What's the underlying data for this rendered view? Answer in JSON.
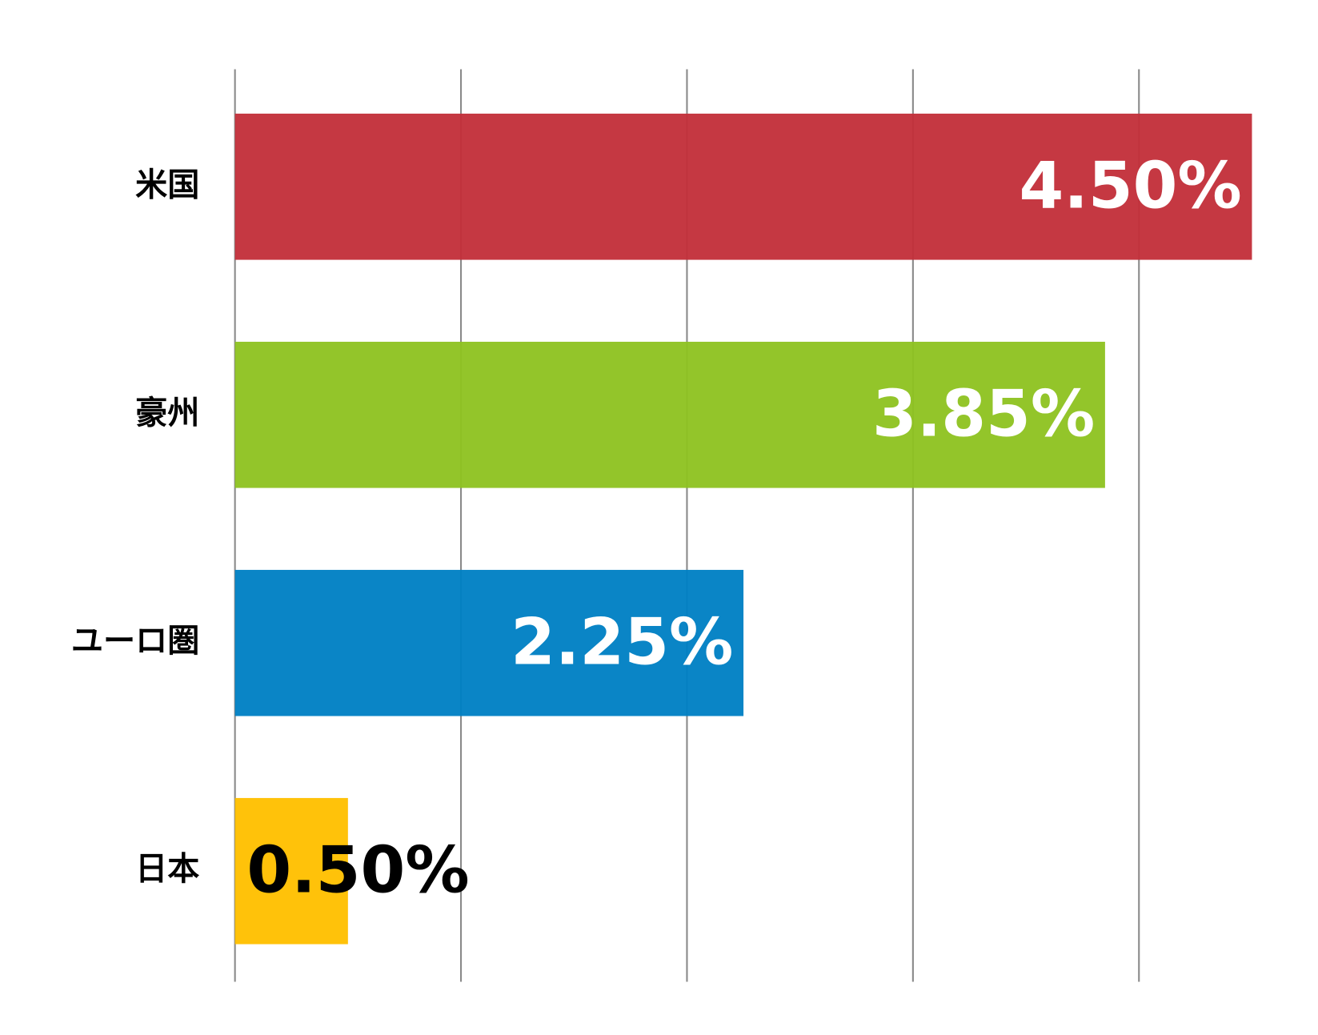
{
  "chart_data": {
    "type": "bar",
    "orientation": "horizontal",
    "categories": [
      "米国",
      "豪州",
      "ユーロ圏",
      "日本"
    ],
    "values": [
      4.5,
      3.85,
      2.25,
      0.5
    ],
    "value_labels": [
      "4.50%",
      "3.85%",
      "2.25%",
      "0.50%"
    ],
    "colors": [
      "#c3303a",
      "#8fc321",
      "#0080c4",
      "#ffc000"
    ],
    "xlim": [
      0,
      4.5
    ],
    "xticks": [
      0,
      1,
      2,
      3,
      4
    ],
    "grid": true
  }
}
